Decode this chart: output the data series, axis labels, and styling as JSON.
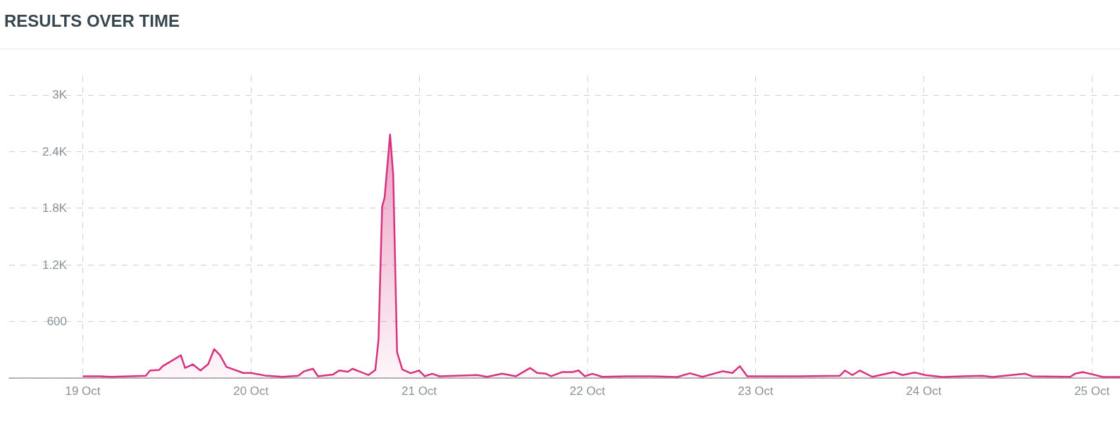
{
  "chart_data": {
    "type": "area",
    "title": "RESULTS OVER TIME",
    "x": [
      "--10-19T00:00",
      "--10-19T02:30",
      "--10-19T04:00",
      "--10-19T06:45",
      "--10-19T09:00",
      "--10-19T09:36",
      "--10-19T10:54",
      "--10-19T11:24",
      "--10-19T12:30",
      "--10-19T14:00",
      "--10-19T14:36",
      "--10-19T15:42",
      "--10-19T16:48",
      "--10-19T17:54",
      "--10-19T18:45",
      "--10-19T19:36",
      "--10-19T20:30",
      "--10-19T22:54",
      "--10-20T00:00",
      "--10-20T02:00",
      "--10-20T04:30",
      "--10-20T06:45",
      "--10-20T07:36",
      "--10-20T08:51",
      "--10-20T09:34",
      "--10-20T11:43",
      "--10-20T12:36",
      "--10-20T13:51",
      "--10-20T14:30",
      "--10-20T16:45",
      "--10-20T17:45",
      "--10-20T18:12",
      "--10-20T18:43",
      "--10-20T19:04",
      "--10-20T19:51",
      "--10-20T20:18",
      "--10-20T20:51",
      "--10-20T21:36",
      "--10-20T22:48",
      "--10-21T00:00",
      "--10-21T00:47",
      "--10-21T01:51",
      "--10-21T02:54",
      "--10-21T08:17",
      "--10-21T09:42",
      "--10-21T11:51",
      "--10-21T13:49",
      "--10-21T15:51",
      "--10-21T16:51",
      "--10-21T18:06",
      "--10-21T18:49",
      "--10-21T20:26",
      "--10-21T21:51",
      "--10-21T22:45",
      "--10-21T23:38",
      "--10-22T00:43",
      "--10-22T02:08",
      "--10-22T05:42",
      "--10-22T09:17",
      "--10-22T12:51",
      "--10-22T14:38",
      "--10-22T16:25",
      "--10-22T19:17",
      "--10-22T20:42",
      "--10-22T21:45",
      "--10-22T22:49",
      "--10-23T03:28",
      "--10-23T06:18",
      "--10-23T12:00",
      "--10-23T12:45",
      "--10-23T13:49",
      "--10-23T14:53",
      "--10-23T16:40",
      "--10-23T19:43",
      "--10-23T21:00",
      "--10-23T22:45",
      "--10-24T00:11",
      "--10-24T02:40",
      "--10-24T05:30",
      "--10-24T08:21",
      "--10-24T09:48",
      "--10-24T14:28",
      "--10-24T15:30",
      "--10-24T20:53",
      "--10-24T21:36",
      "--10-24T22:40",
      "--10-25T00:08",
      "--10-25T01:34",
      "--10-25T04:00"
    ],
    "series": [
      {
        "color": "#d6327f",
        "values": [
          19,
          19,
          13,
          19,
          24,
          80,
          86,
          126,
          174,
          241,
          107,
          145,
          80,
          147,
          306,
          241,
          118,
          54,
          54,
          27,
          13,
          24,
          72,
          99,
          19,
          38,
          80,
          67,
          99,
          32,
          86,
          408,
          1816,
          1910,
          2580,
          2151,
          274,
          91,
          51,
          80,
          19,
          46,
          19,
          32,
          13,
          46,
          19,
          107,
          54,
          46,
          19,
          64,
          64,
          80,
          19,
          46,
          13,
          19,
          19,
          11,
          51,
          13,
          72,
          54,
          126,
          19,
          19,
          19,
          24,
          80,
          32,
          80,
          13,
          64,
          32,
          59,
          32,
          11,
          19,
          24,
          11,
          46,
          19,
          13,
          46,
          64,
          38,
          11,
          11
        ]
      }
    ],
    "xlim": [
      "--10-18T13:30",
      "--10-25T04:00"
    ],
    "xticks": [
      {
        "value": "--10-19",
        "label": "19 Oct"
      },
      {
        "value": "--10-20",
        "label": "20 Oct"
      },
      {
        "value": "--10-21",
        "label": "21 Oct"
      },
      {
        "value": "--10-22",
        "label": "22 Oct"
      },
      {
        "value": "--10-23",
        "label": "23 Oct"
      },
      {
        "value": "--10-24",
        "label": "24 Oct"
      },
      {
        "value": "--10-25",
        "label": "25 Oct"
      }
    ],
    "ylim": [
      0,
      3200
    ],
    "yticks": [
      {
        "value": 0,
        "label": null
      },
      600,
      {
        "value": 1200,
        "label": "1.2K"
      },
      {
        "value": 1800,
        "label": "1.8K"
      },
      {
        "value": 2400,
        "label": "2.4K"
      },
      {
        "value": 3000,
        "label": "3K"
      }
    ],
    "grid": true,
    "marker": "none"
  }
}
